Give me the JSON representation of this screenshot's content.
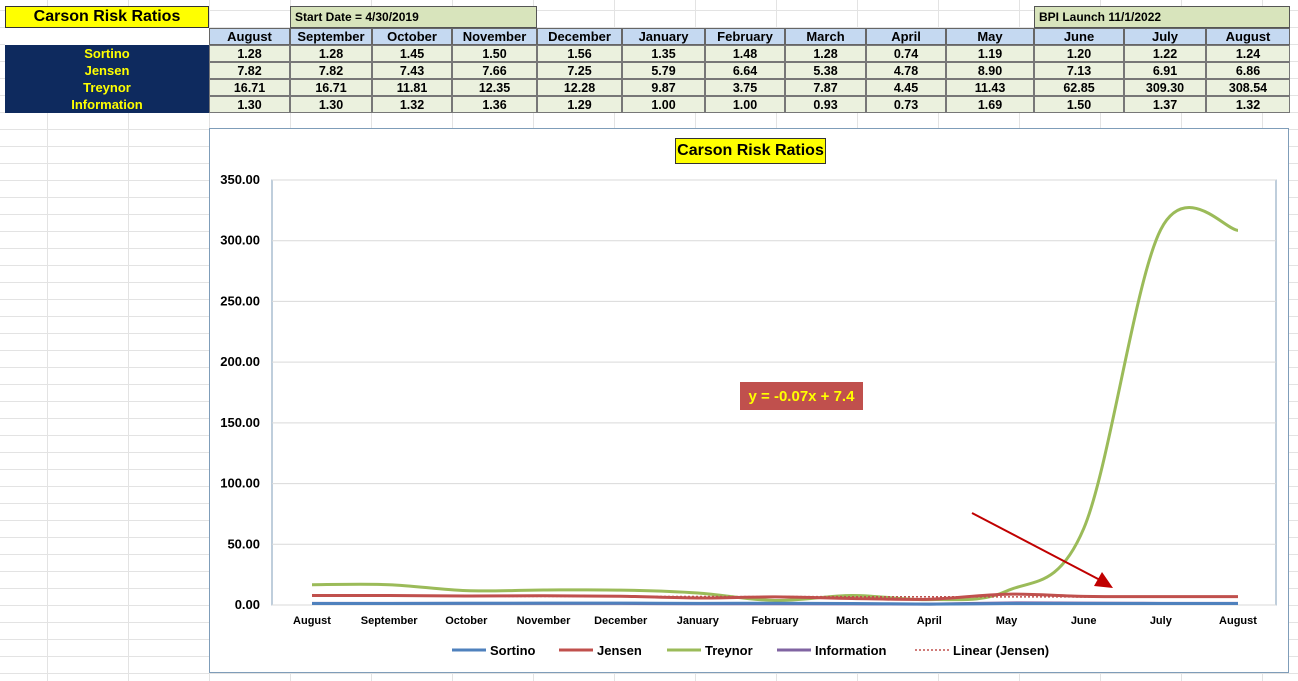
{
  "sheet": {
    "title": "Carson Risk Ratios",
    "start_date": "Start Date = 4/30/2019",
    "bpi_launch": "BPI Launch 11/1/2022"
  },
  "chart_data": {
    "type": "line",
    "title": "Carson Risk Ratios",
    "categories": [
      "August",
      "September",
      "October",
      "November",
      "December",
      "January",
      "February",
      "March",
      "April",
      "May",
      "June",
      "July",
      "August"
    ],
    "series": [
      {
        "name": "Sortino",
        "color": "#4f81bd",
        "values": [
          1.28,
          1.28,
          1.45,
          1.5,
          1.56,
          1.35,
          1.48,
          1.28,
          0.74,
          1.19,
          1.2,
          1.22,
          1.24
        ]
      },
      {
        "name": "Jensen",
        "color": "#c0504d",
        "values": [
          7.82,
          7.82,
          7.43,
          7.66,
          7.25,
          5.79,
          6.64,
          5.38,
          4.78,
          8.9,
          7.13,
          6.91,
          6.86
        ]
      },
      {
        "name": "Treynor",
        "color": "#9bbb59",
        "values": [
          16.71,
          16.71,
          11.81,
          12.35,
          12.28,
          9.87,
          3.75,
          7.87,
          4.45,
          11.43,
          62.85,
          309.3,
          308.54
        ]
      },
      {
        "name": "Information",
        "color": "#8064a2",
        "values": [
          1.3,
          1.3,
          1.32,
          1.36,
          1.29,
          1.0,
          1.0,
          0.93,
          0.73,
          1.69,
          1.5,
          1.37,
          1.32
        ]
      }
    ],
    "trendline": {
      "name": "Linear (Jensen)",
      "color": "#c0504d",
      "equation": "y = -0.07x + 7.4",
      "slope": -0.07,
      "intercept": 7.4
    },
    "ylim": [
      0,
      350
    ],
    "yticks": [
      "0.00",
      "50.00",
      "100.00",
      "150.00",
      "200.00",
      "250.00",
      "300.00",
      "350.00"
    ],
    "grid": true,
    "legend_position": "bottom"
  }
}
